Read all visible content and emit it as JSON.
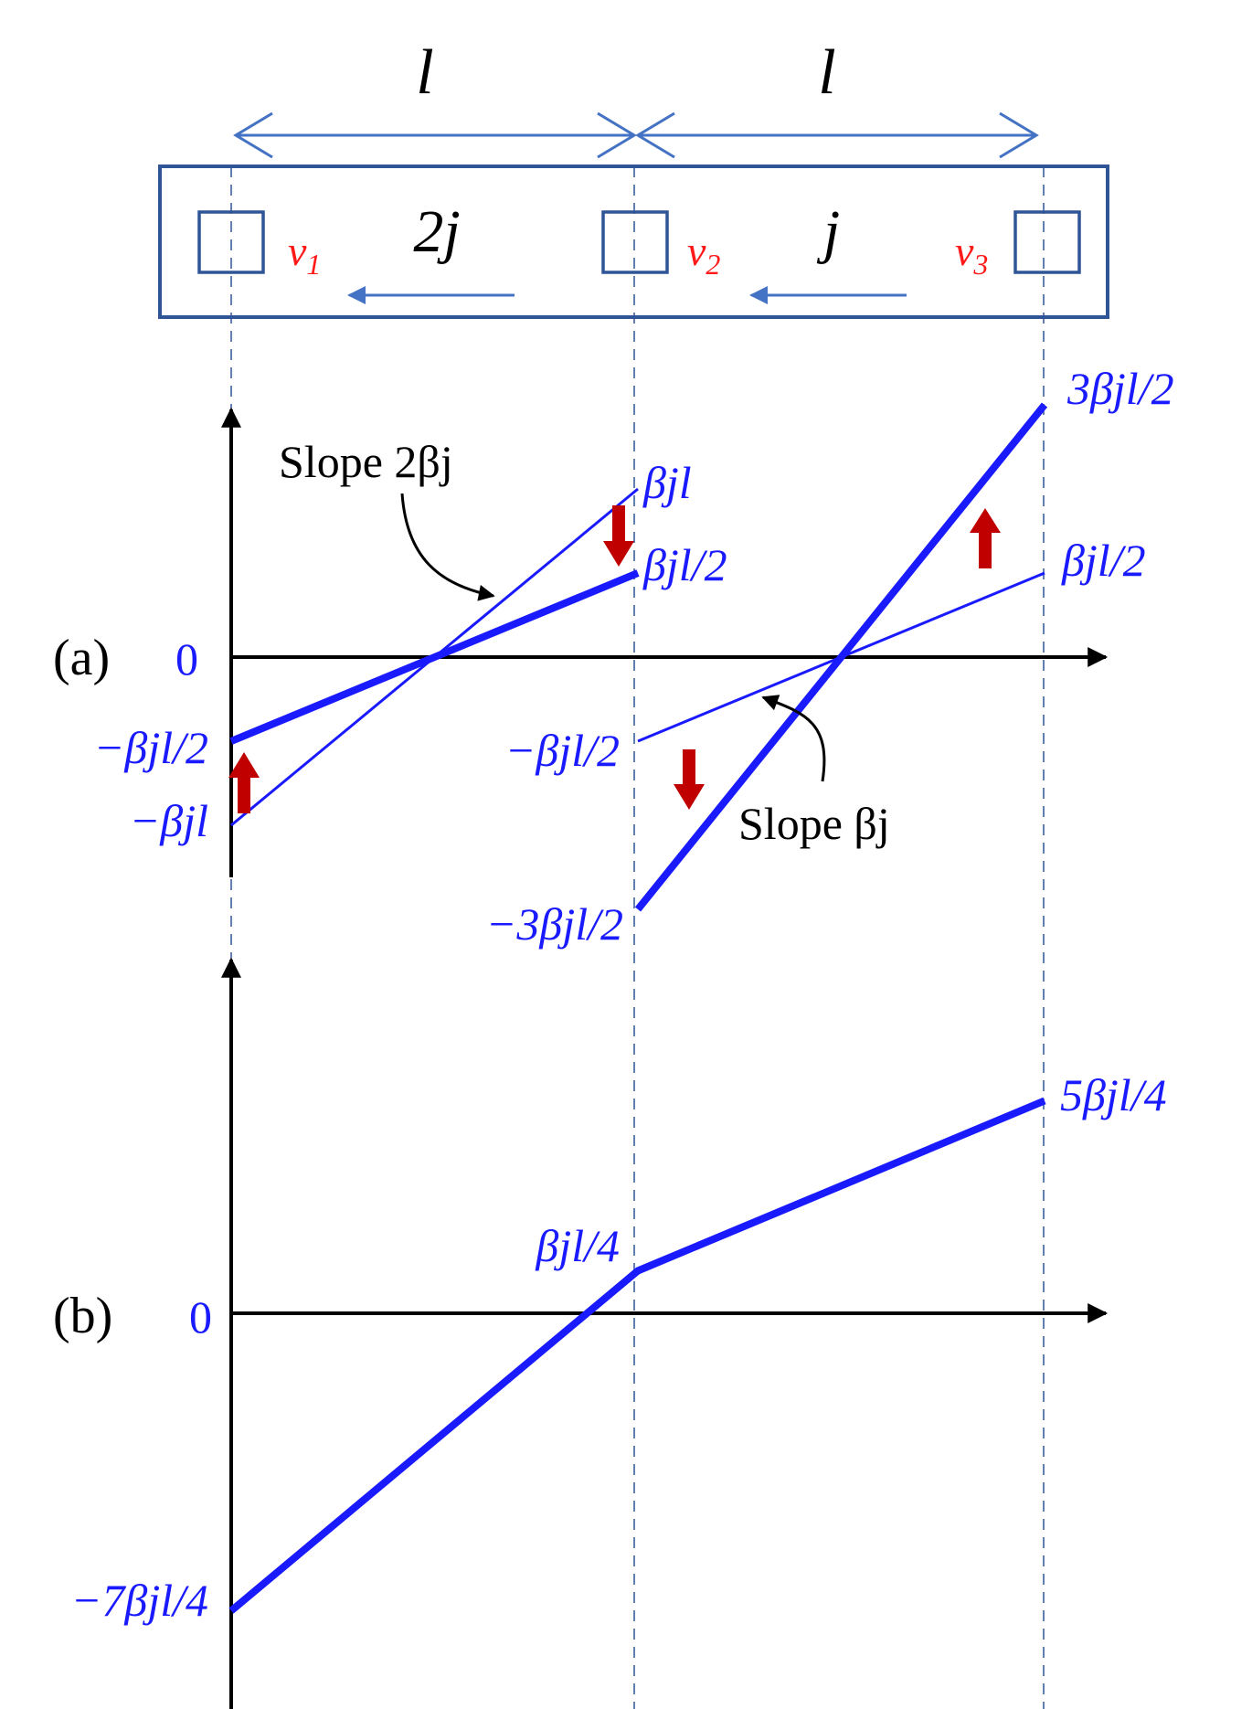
{
  "colors": {
    "plot_blue": "#1a1aff",
    "frame_blue": "#2f5597",
    "arrow_blue": "#4472c4",
    "red": "#ff1a1a",
    "dark_red": "#c00000",
    "black": "#000000"
  },
  "top": {
    "span_left": "l",
    "span_right": "l",
    "current_left": "2j",
    "current_right": "j",
    "v1": {
      "base": "v",
      "sub": "1"
    },
    "v2": {
      "base": "v",
      "sub": "2"
    },
    "v3": {
      "base": "v",
      "sub": "3"
    }
  },
  "panel_a": {
    "tag": "(a)",
    "zero": "0",
    "neg_half": "−βjl/2",
    "neg_one": "−βjl",
    "pos_one": "βjl",
    "pos_half_mid": "βjl/2",
    "neg_half_mid": "−βjl/2",
    "neg_three_half": "−3βjl/2",
    "pos_three_half": "3βjl/2",
    "pos_half_right": "βjl/2",
    "slope_left": "Slope 2βj",
    "slope_right": "Slope βj"
  },
  "panel_b": {
    "tag": "(b)",
    "zero": "0",
    "neg_seven_quarter": "−7βjl/4",
    "quarter": "βjl/4",
    "five_quarter": "5βjl/4"
  },
  "chart_data": [
    {
      "type": "line",
      "panel": "(a)",
      "x_positions": [
        "v1",
        "v2",
        "v3"
      ],
      "series": [
        {
          "segment": "left-thin",
          "x": [
            0,
            1
          ],
          "y": [
            -1.0,
            1.0
          ]
        },
        {
          "segment": "left-thick",
          "x": [
            0,
            1
          ],
          "y": [
            -0.5,
            0.5
          ]
        },
        {
          "segment": "right-thin",
          "x": [
            1,
            2
          ],
          "y": [
            -0.5,
            0.5
          ]
        },
        {
          "segment": "right-thick",
          "x": [
            1,
            2
          ],
          "y": [
            -1.5,
            1.5
          ]
        }
      ],
      "y_unit": "βjl",
      "x_unit": "l"
    },
    {
      "type": "line",
      "panel": "(b)",
      "series": [
        {
          "x": [
            0,
            1,
            2
          ],
          "y": [
            -1.75,
            0.25,
            1.25
          ]
        }
      ],
      "y_unit": "βjl",
      "x_unit": "l"
    }
  ]
}
